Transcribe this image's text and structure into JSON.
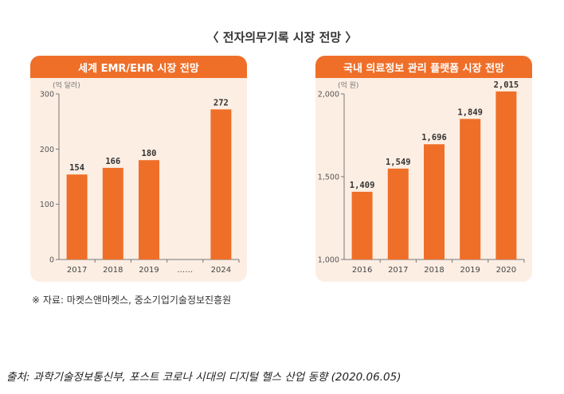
{
  "main_title": "〈 전자의무기록 시장 전망 〉",
  "source_note": "※ 자료: 마켓스앤마켓스, 중소기업기술정보진흥원",
  "citation": "출처: 과학기술정보통신부, 포스트 코로나 시대의 디지털 헬스 산업 동향 (2020.06.05)",
  "colors": {
    "accent": "#ef6f29",
    "panel_bg": "#fdeee3",
    "axis": "#777777"
  },
  "chart_data": [
    {
      "type": "bar",
      "title": "세계 EMR/EHR 시장 전망",
      "unit_label": "(억 달러)",
      "categories": [
        "2017",
        "2018",
        "2019",
        "……",
        "2024"
      ],
      "values": [
        154,
        166,
        180,
        null,
        272
      ],
      "value_labels": [
        "154",
        "166",
        "180",
        "",
        "272"
      ],
      "yticks": [
        "0",
        "100",
        "200",
        "300"
      ],
      "ylim": [
        0,
        300
      ],
      "grid": false
    },
    {
      "type": "bar",
      "title": "국내 의료정보 관리 플랫폼 시장 전망",
      "unit_label": "(억 원)",
      "categories": [
        "2016",
        "2017",
        "2018",
        "2019",
        "2020"
      ],
      "values": [
        1409,
        1549,
        1696,
        1849,
        2015
      ],
      "value_labels": [
        "1,409",
        "1,549",
        "1,696",
        "1,849",
        "2,015"
      ],
      "yticks": [
        "1,000",
        "1,500",
        "2,000"
      ],
      "ylim": [
        1000,
        2000
      ],
      "grid": false
    }
  ]
}
